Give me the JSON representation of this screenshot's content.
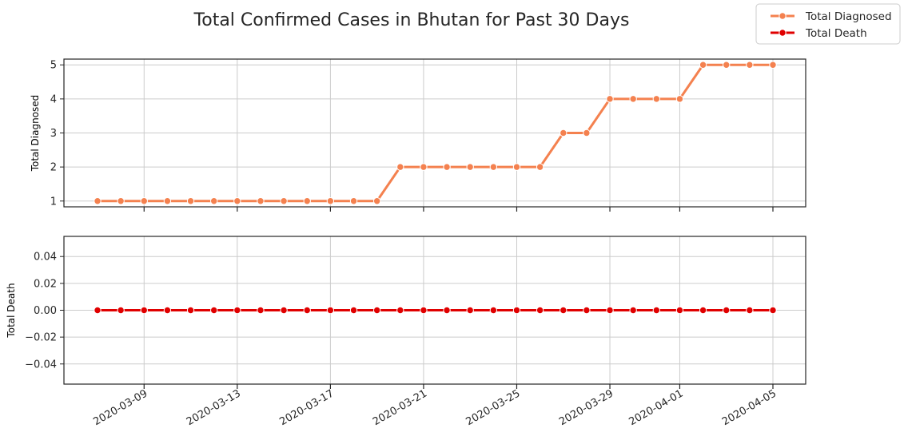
{
  "chart_data": {
    "type": "line",
    "title": "Total Confirmed Cases in Bhutan for Past 30 Days",
    "x": [
      "2020-03-07",
      "2020-03-08",
      "2020-03-09",
      "2020-03-10",
      "2020-03-11",
      "2020-03-12",
      "2020-03-13",
      "2020-03-14",
      "2020-03-15",
      "2020-03-16",
      "2020-03-17",
      "2020-03-18",
      "2020-03-19",
      "2020-03-20",
      "2020-03-21",
      "2020-03-22",
      "2020-03-23",
      "2020-03-24",
      "2020-03-25",
      "2020-03-26",
      "2020-03-27",
      "2020-03-28",
      "2020-03-29",
      "2020-03-30",
      "2020-03-31",
      "2020-04-01",
      "2020-04-02",
      "2020-04-03",
      "2020-04-04",
      "2020-04-05"
    ],
    "x_ticks": [
      "2020-03-09",
      "2020-03-13",
      "2020-03-17",
      "2020-03-21",
      "2020-03-25",
      "2020-03-29",
      "2020-04-01",
      "2020-04-05"
    ],
    "grid": true,
    "legend_position": "top-right",
    "panels": [
      {
        "ylabel": "Total Diagnosed",
        "ylim": [
          0.83,
          5.17
        ],
        "y_ticks": [
          "1",
          "2",
          "3",
          "4",
          "5"
        ],
        "y_tick_values": [
          1,
          2,
          3,
          4,
          5
        ],
        "series": [
          {
            "name": "Total Diagnosed",
            "color": "#f4814f",
            "values": [
              1,
              1,
              1,
              1,
              1,
              1,
              1,
              1,
              1,
              1,
              1,
              1,
              1,
              2,
              2,
              2,
              2,
              2,
              2,
              2,
              3,
              3,
              4,
              4,
              4,
              4,
              5,
              5,
              5,
              5
            ]
          }
        ]
      },
      {
        "ylabel": "Total Death",
        "ylim": [
          -0.055,
          0.055
        ],
        "y_ticks": [
          "0.04",
          "0.02",
          "0.00",
          "−0.02",
          "−0.04"
        ],
        "y_tick_values": [
          0.04,
          0.02,
          0,
          -0.02,
          -0.04
        ],
        "series": [
          {
            "name": "Total Death",
            "color": "#e00000",
            "values": [
              0,
              0,
              0,
              0,
              0,
              0,
              0,
              0,
              0,
              0,
              0,
              0,
              0,
              0,
              0,
              0,
              0,
              0,
              0,
              0,
              0,
              0,
              0,
              0,
              0,
              0,
              0,
              0,
              0,
              0
            ]
          }
        ]
      }
    ]
  }
}
